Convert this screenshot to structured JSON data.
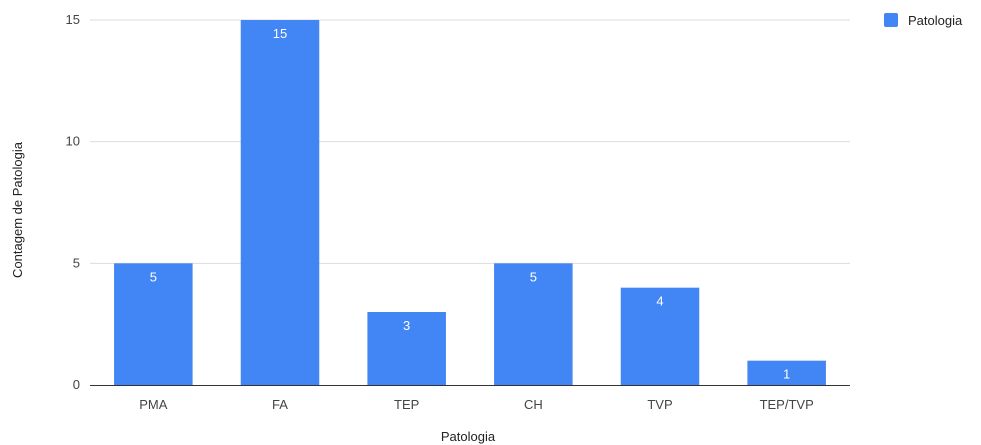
{
  "chart_data": {
    "type": "bar",
    "title": "",
    "xlabel": "Patologia",
    "ylabel": "Contagem de Patologia",
    "categories": [
      "PMA",
      "FA",
      "TEP",
      "CH",
      "TVP",
      "TEP/TVP"
    ],
    "series": [
      {
        "name": "Patologia",
        "values": [
          5,
          15,
          3,
          5,
          4,
          1
        ],
        "color": "#4285f4"
      }
    ],
    "data_labels": [
      "5",
      "15",
      "3",
      "5",
      "4",
      "1"
    ],
    "ylim": [
      0,
      15
    ],
    "yticks": [
      0,
      5,
      10,
      15
    ],
    "ytick_labels": [
      "0",
      "5",
      "10",
      "15"
    ],
    "grid": true,
    "legend_position": "top-right"
  }
}
